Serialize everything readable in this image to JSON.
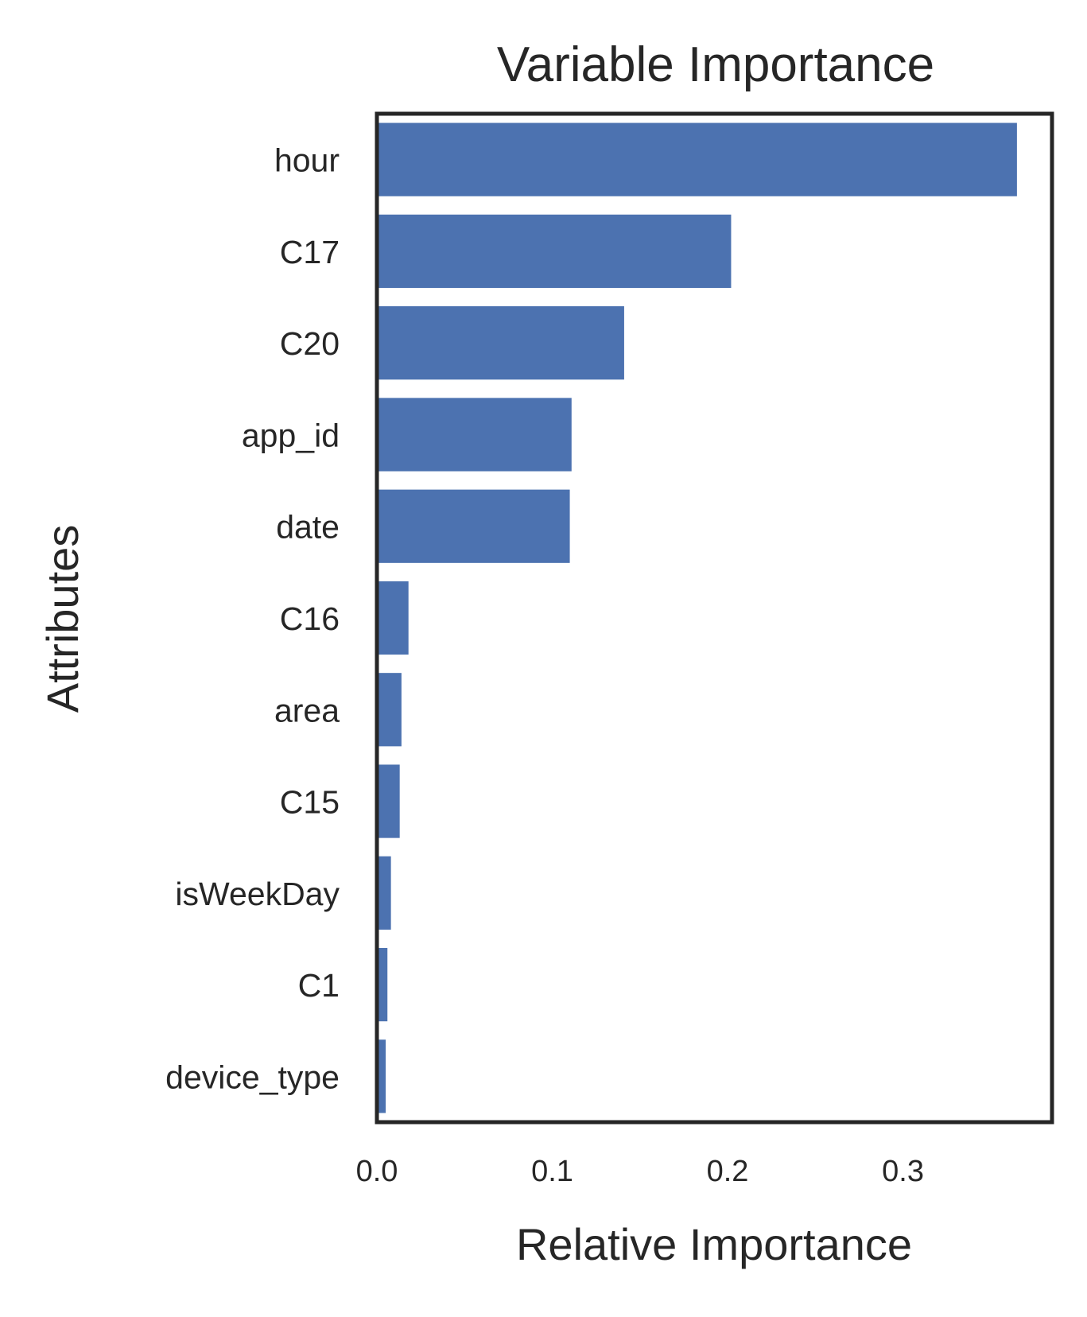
{
  "chart_data": {
    "type": "bar",
    "orientation": "horizontal",
    "title": "Variable Importance",
    "xlabel": "Relative Importance",
    "ylabel": "Attributes",
    "categories": [
      "hour",
      "C17",
      "C20",
      "app_id",
      "date",
      "C16",
      "area",
      "C15",
      "isWeekDay",
      "C1",
      "device_type"
    ],
    "values": [
      0.365,
      0.202,
      0.141,
      0.111,
      0.11,
      0.018,
      0.014,
      0.013,
      0.008,
      0.006,
      0.005
    ],
    "xlim": [
      0.0,
      0.385
    ],
    "xticks": [
      0.0,
      0.1,
      0.2,
      0.3
    ],
    "xtick_labels": [
      "0.0",
      "0.1",
      "0.2",
      "0.3"
    ],
    "bar_color": "#4c72b0",
    "frame_color": "#262626",
    "grid": false,
    "legend": "none"
  }
}
